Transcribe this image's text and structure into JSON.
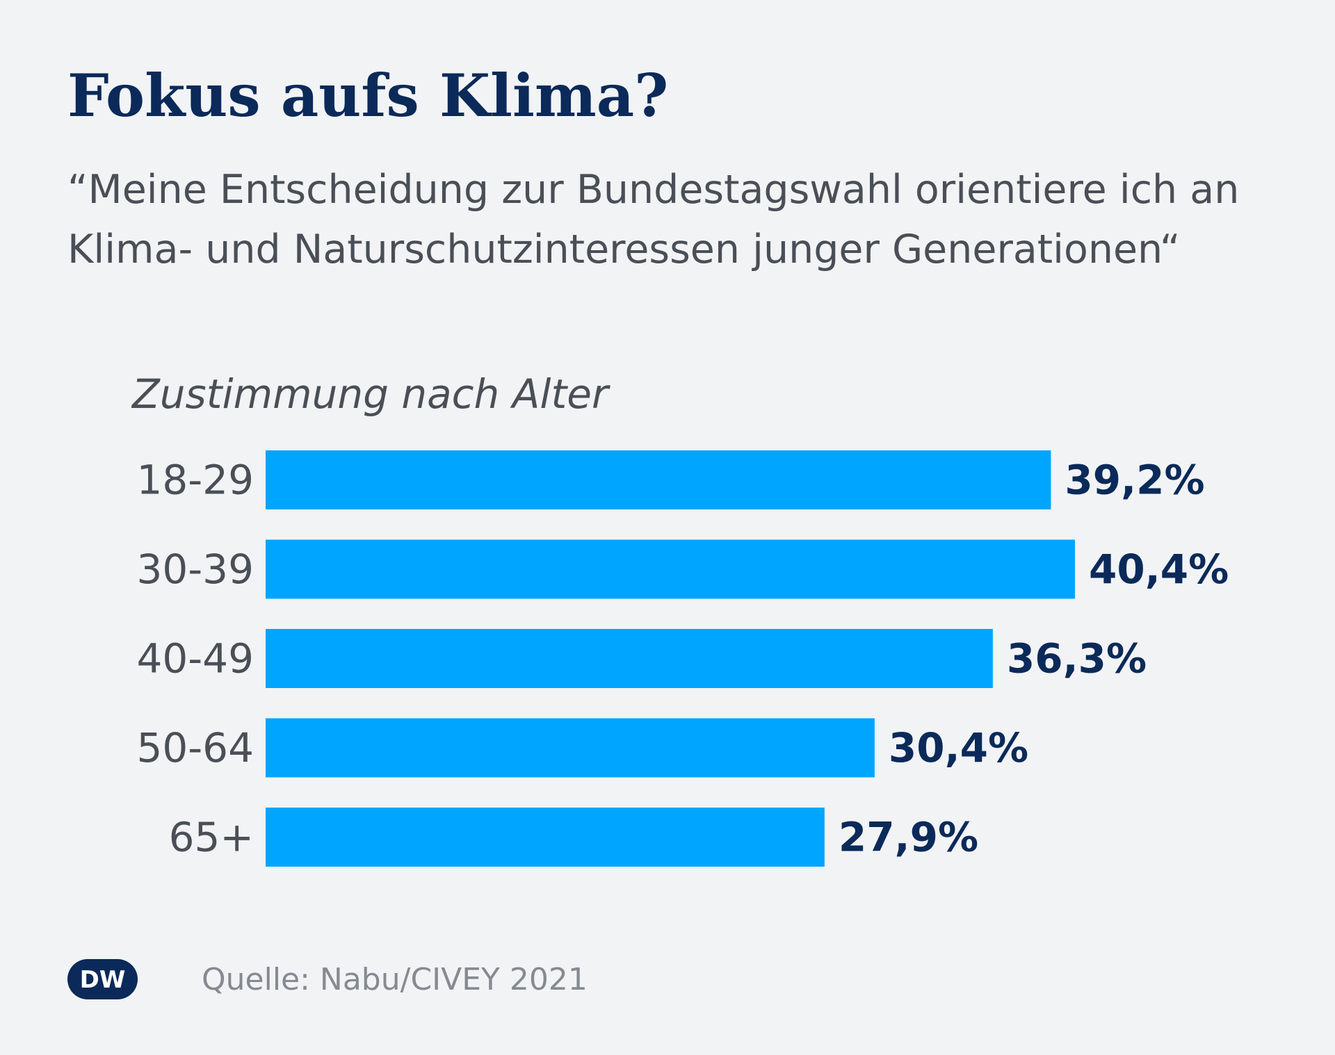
{
  "header": {
    "title": "Fokus aufs Klima?",
    "subtitle": "“Meine Entscheidung zur Bundestagswahl orientiere ich an Klima- und Naturschutzinteressen junger Generationen“"
  },
  "chart_data": {
    "type": "bar",
    "orientation": "horizontal",
    "title": "Fokus aufs Klima?",
    "subtitle": "“Meine Entscheidung zur Bundestagswahl orientiere ich an Klima- und Naturschutzinteressen junger Generationen“",
    "section_label": "Zustimmung nach Alter",
    "categories": [
      "18-29",
      "30-39",
      "40-49",
      "50-64",
      "65+"
    ],
    "values": [
      39.2,
      40.4,
      36.3,
      30.4,
      27.9
    ],
    "value_labels": [
      "39,2%",
      "40,4%",
      "36,3%",
      "30,4%",
      "27,9%"
    ],
    "unit": "%",
    "xlim": [
      0,
      40.4
    ],
    "grid": false,
    "legend": "none",
    "bar_color": "#00a5ff"
  },
  "footer": {
    "logo_text": "DW",
    "source": "Quelle: Nabu/CIVEY 2021"
  },
  "colors": {
    "background": "#f2f3f5",
    "title": "#0b2a59",
    "text": "#4a4f57",
    "value_text": "#0b2a59",
    "source_text": "#858a92",
    "bar": "#00a5ff"
  }
}
